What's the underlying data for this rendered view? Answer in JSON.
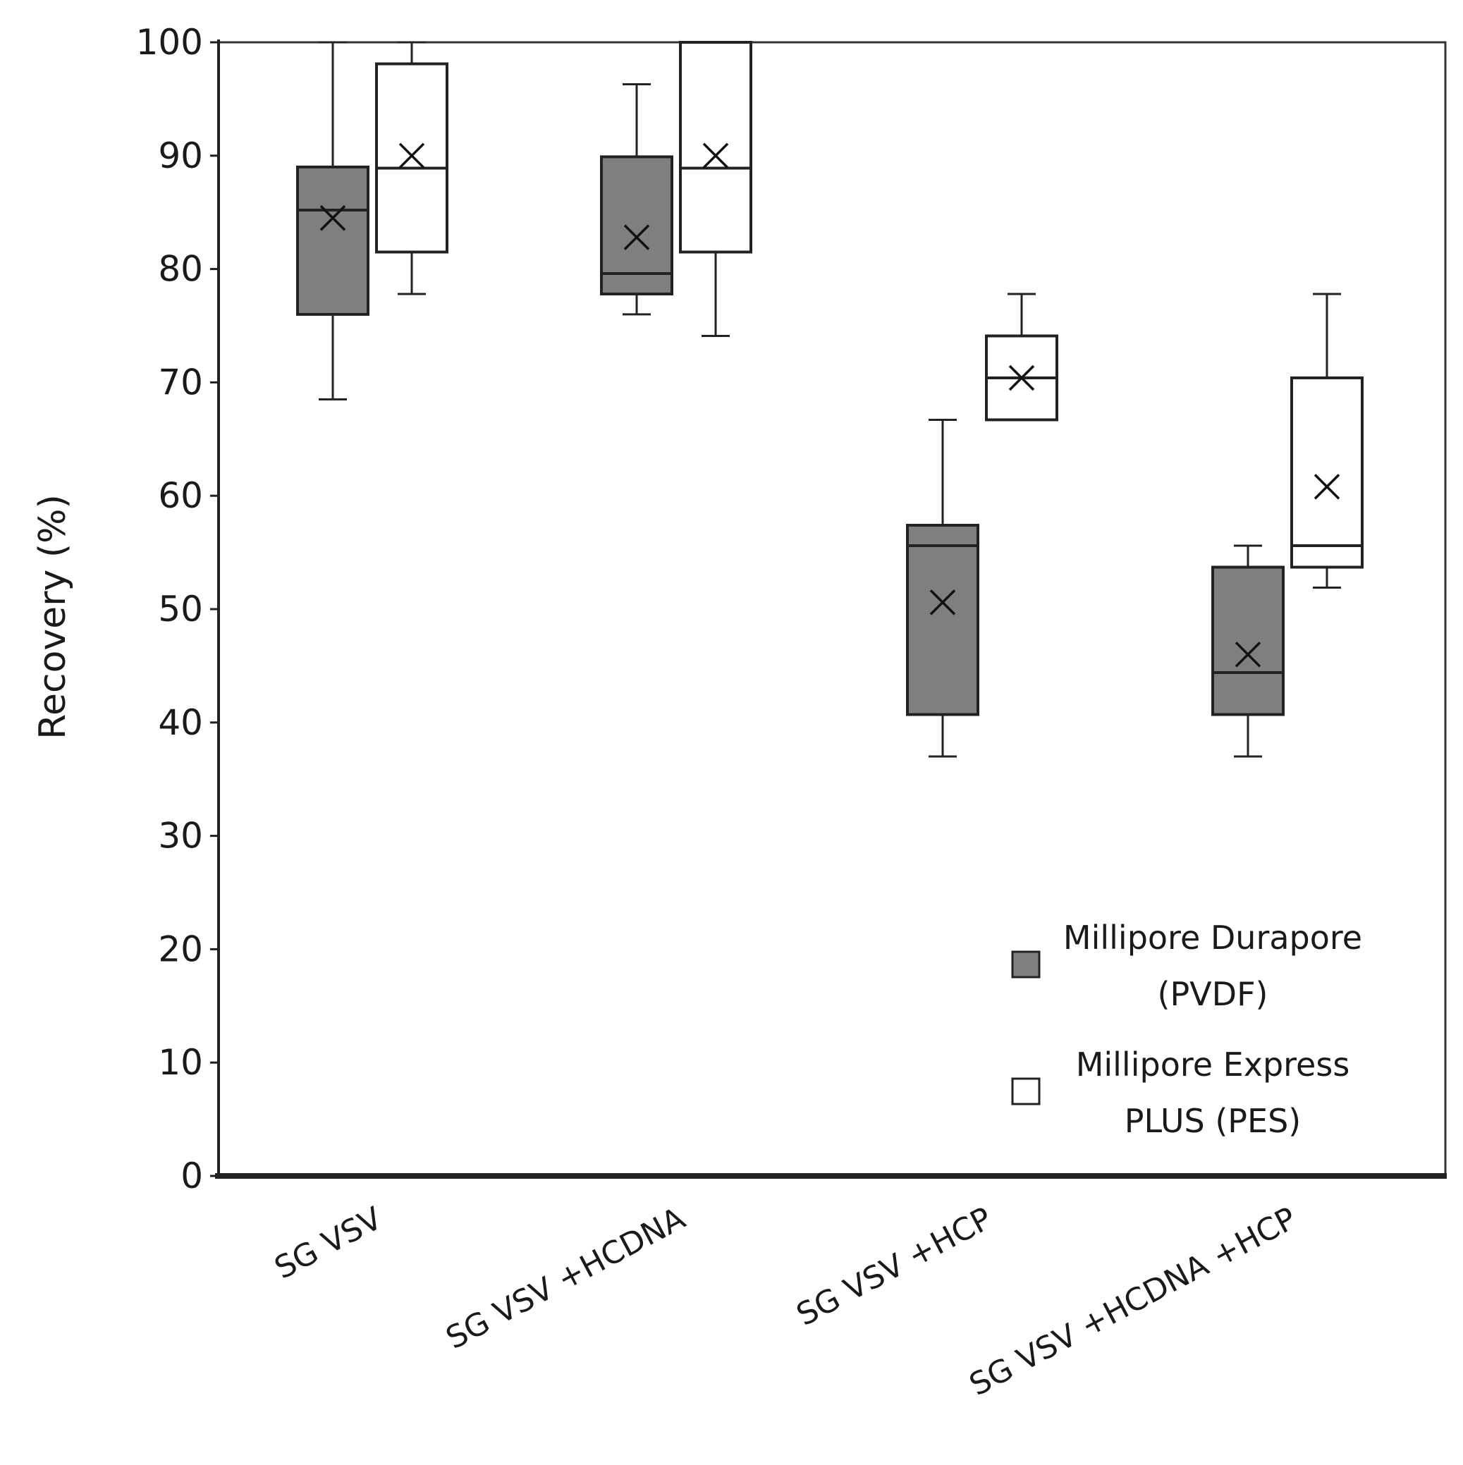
{
  "chart_data": {
    "type": "boxplot",
    "title": "",
    "xlabel": "",
    "ylabel": "Recovery (%)",
    "ylim": [
      0,
      100
    ],
    "yticks": [
      0,
      10,
      20,
      30,
      40,
      50,
      60,
      70,
      80,
      90,
      100
    ],
    "categories": [
      "SG VSV",
      "SG VSV +HCDNA",
      "SG VSV +HCP",
      "SG VSV +HCDNA +HCP"
    ],
    "legend_position": "bottom-right",
    "series": [
      {
        "name": "Millipore Durapore (PVDF)",
        "legend_lines": [
          "Millipore Durapore",
          "(PVDF)"
        ],
        "color": "#7f7f7f",
        "boxes": [
          {
            "min": 68.5,
            "q1": 76,
            "median": 85.2,
            "q3": 89,
            "max": 100,
            "mean": 84.5
          },
          {
            "min": 76,
            "q1": 77.8,
            "median": 79.6,
            "q3": 89.9,
            "max": 96.3,
            "mean": 82.8
          },
          {
            "min": 37,
            "q1": 40.7,
            "median": 55.6,
            "q3": 57.4,
            "max": 66.7,
            "mean": 50.6
          },
          {
            "min": 37,
            "q1": 40.7,
            "median": 44.4,
            "q3": 53.7,
            "max": 55.6,
            "mean": 46
          }
        ]
      },
      {
        "name": "Millipore Express PLUS (PES)",
        "legend_lines": [
          "Millipore Express",
          "PLUS (PES)"
        ],
        "color": "#ffffff",
        "boxes": [
          {
            "min": 77.8,
            "q1": 81.5,
            "median": 88.9,
            "q3": 98.1,
            "max": 100,
            "mean": 90
          },
          {
            "min": 74.1,
            "q1": 81.5,
            "median": 88.9,
            "q3": 100,
            "max": 100,
            "mean": 90
          },
          {
            "min": 66.7,
            "q1": 66.7,
            "median": 70.4,
            "q3": 74.1,
            "max": 77.8,
            "mean": 70.4
          },
          {
            "min": 51.9,
            "q1": 53.7,
            "median": 55.6,
            "q3": 70.4,
            "max": 77.8,
            "mean": 60.8
          }
        ]
      }
    ]
  }
}
